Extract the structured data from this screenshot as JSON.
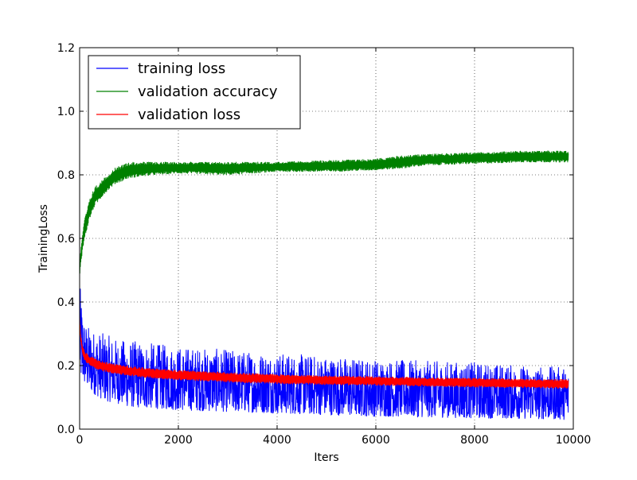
{
  "chart_data": {
    "type": "line",
    "title": "",
    "xlabel": "Iters",
    "ylabel": "TrainingLoss",
    "xlim": [
      0,
      10000
    ],
    "ylim": [
      0.0,
      1.2
    ],
    "x_ticks": [
      "0",
      "2000",
      "4000",
      "6000",
      "8000",
      "10000"
    ],
    "y_ticks": [
      "0.0",
      "0.2",
      "0.4",
      "0.6",
      "0.8",
      "1.0",
      "1.2"
    ],
    "x_tick_values": [
      0,
      2000,
      4000,
      6000,
      8000,
      10000
    ],
    "y_tick_values": [
      0.0,
      0.2,
      0.4,
      0.6,
      0.8,
      1.0,
      1.2
    ],
    "grid": true,
    "legend_position": "top-left",
    "series": [
      {
        "name": "training loss",
        "color": "#0000ff",
        "x": [
          0,
          20,
          50,
          100,
          200,
          300,
          500,
          800,
          1000,
          1500,
          2000,
          3000,
          4000,
          5000,
          6000,
          7000,
          8000,
          9000,
          9900
        ],
        "lo": [
          0.16,
          0.15,
          0.15,
          0.14,
          0.12,
          0.11,
          0.09,
          0.08,
          0.07,
          0.065,
          0.06,
          0.055,
          0.05,
          0.045,
          0.04,
          0.038,
          0.035,
          0.033,
          0.03
        ],
        "hi": [
          0.45,
          0.44,
          0.4,
          0.34,
          0.32,
          0.31,
          0.3,
          0.28,
          0.28,
          0.27,
          0.26,
          0.25,
          0.24,
          0.23,
          0.22,
          0.215,
          0.21,
          0.2,
          0.195
        ]
      },
      {
        "name": "validation accuracy",
        "color": "#008000",
        "x": [
          0,
          30,
          100,
          200,
          300,
          500,
          700,
          1000,
          1500,
          2000,
          3000,
          4000,
          5000,
          6000,
          6500,
          7000,
          8000,
          9000,
          9900
        ],
        "lo": [
          0.48,
          0.53,
          0.6,
          0.66,
          0.7,
          0.74,
          0.77,
          0.79,
          0.8,
          0.805,
          0.8,
          0.81,
          0.81,
          0.815,
          0.82,
          0.83,
          0.835,
          0.84,
          0.84
        ],
        "hi": [
          0.52,
          0.58,
          0.66,
          0.72,
          0.76,
          0.79,
          0.82,
          0.84,
          0.84,
          0.84,
          0.84,
          0.84,
          0.845,
          0.85,
          0.86,
          0.865,
          0.87,
          0.875,
          0.875
        ]
      },
      {
        "name": "validation loss",
        "color": "#ff0000",
        "x": [
          0,
          20,
          50,
          100,
          200,
          400,
          700,
          1000,
          1500,
          2000,
          3000,
          4000,
          5000,
          6000,
          7000,
          8000,
          9000,
          9900
        ],
        "lo": [
          0.34,
          0.28,
          0.24,
          0.215,
          0.2,
          0.185,
          0.175,
          0.168,
          0.16,
          0.155,
          0.148,
          0.143,
          0.14,
          0.138,
          0.135,
          0.132,
          0.13,
          0.128
        ],
        "hi": [
          0.36,
          0.3,
          0.27,
          0.245,
          0.23,
          0.215,
          0.205,
          0.198,
          0.19,
          0.185,
          0.178,
          0.172,
          0.168,
          0.165,
          0.162,
          0.16,
          0.158,
          0.156
        ]
      }
    ]
  }
}
